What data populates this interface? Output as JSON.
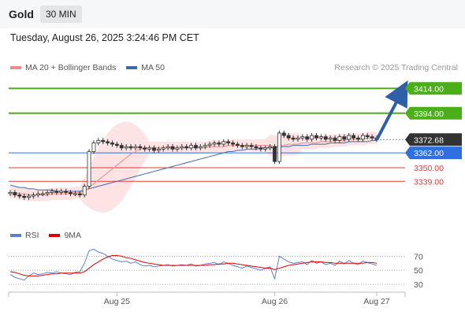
{
  "header": {
    "title": "Gold",
    "period": "30 MIN"
  },
  "datetime": "Tuesday, August 26, 2025 3:24:46 PM CET",
  "legend": {
    "main": [
      {
        "label": "MA 20 + Bollinger Bands",
        "color": "#f28b82"
      },
      {
        "label": "MA 50",
        "color": "#3f6aa8"
      }
    ],
    "indicator": [
      {
        "label": "RSI",
        "color": "#5b7fd6"
      },
      {
        "label": "9MA",
        "color": "#e00000"
      }
    ]
  },
  "credit": "Research © 2025 Trading Central",
  "chart_data": [
    {
      "type": "candlestick",
      "ylim": [
        3315,
        3425
      ],
      "x_ticks": [
        {
          "label": "Aug 25",
          "index": 23
        },
        {
          "label": "Aug 26",
          "index": 57
        },
        {
          "label": "Aug 27",
          "index": 79
        }
      ],
      "current_price": {
        "label": "3372.68",
        "value": 3372.68,
        "color": "#333333"
      },
      "levels": [
        {
          "label": "3414.00",
          "value": 3414.0,
          "kind": "resistance",
          "color": "#4caf1a"
        },
        {
          "label": "3394.00",
          "value": 3394.0,
          "kind": "resistance",
          "color": "#4caf1a"
        },
        {
          "label": "3362.00",
          "value": 3362.0,
          "kind": "pivot",
          "color": "#2f6fe0"
        },
        {
          "label": "3350.00",
          "value": 3350.0,
          "kind": "support",
          "color": "#e53935"
        },
        {
          "label": "3339.00",
          "value": 3339.0,
          "kind": "support",
          "color": "#e53935"
        }
      ],
      "arrow": {
        "from_index": 80,
        "from_value": 3372.5,
        "to_value": 3414,
        "color": "#2f5fa8"
      },
      "close": [
        3330,
        3328,
        3327,
        3326,
        3327,
        3328,
        3329,
        3329,
        3330,
        3331,
        3330,
        3331,
        3330,
        3329,
        3329,
        3328,
        3335,
        3363,
        3370,
        3372,
        3371,
        3370,
        3369,
        3368,
        3366,
        3367,
        3366,
        3367,
        3366,
        3365,
        3366,
        3364,
        3365,
        3366,
        3367,
        3365,
        3366,
        3367,
        3366,
        3368,
        3366,
        3367,
        3368,
        3369,
        3370,
        3369,
        3371,
        3370,
        3369,
        3368,
        3367,
        3368,
        3367,
        3366,
        3365,
        3366,
        3367,
        3355,
        3378,
        3376,
        3374,
        3373,
        3374,
        3375,
        3373,
        3376,
        3374,
        3375,
        3373,
        3374,
        3372,
        3375,
        3373,
        3376,
        3374,
        3373,
        3376,
        3375,
        3374,
        3372.68
      ],
      "ma20": [
        3330,
        3330,
        3329,
        3329,
        3328,
        3328,
        3328,
        3328,
        3328,
        3329,
        3329,
        3329,
        3329,
        3329,
        3330,
        3330,
        3331,
        3334,
        3337,
        3340,
        3343,
        3346,
        3349,
        3352,
        3355,
        3358,
        3361,
        3363,
        3365,
        3366,
        3366,
        3366,
        3366,
        3366,
        3366,
        3366,
        3366,
        3366,
        3366,
        3366,
        3366,
        3366,
        3366,
        3367,
        3367,
        3367,
        3367,
        3368,
        3368,
        3368,
        3368,
        3368,
        3368,
        3368,
        3368,
        3368,
        3368,
        3367,
        3368,
        3368,
        3369,
        3369,
        3369,
        3370,
        3370,
        3370,
        3370,
        3371,
        3371,
        3371,
        3372,
        3372,
        3372,
        3373,
        3373,
        3373,
        3373,
        3374,
        3374,
        3374
      ],
      "ma50": [
        3336,
        3335,
        3334,
        3334,
        3333,
        3333,
        3332,
        3332,
        3332,
        3332,
        3331,
        3331,
        3331,
        3331,
        3331,
        3331,
        3332,
        3333,
        3334,
        3335,
        3336,
        3337,
        3338,
        3339,
        3340,
        3341,
        3342,
        3343,
        3344,
        3345,
        3346,
        3347,
        3348,
        3349,
        3350,
        3351,
        3352,
        3353,
        3354,
        3355,
        3356,
        3357,
        3358,
        3359,
        3360,
        3361,
        3362,
        3363,
        3363,
        3364,
        3364,
        3365,
        3365,
        3365,
        3366,
        3366,
        3366,
        3366,
        3367,
        3367,
        3367,
        3368,
        3368,
        3368,
        3368,
        3369,
        3369,
        3369,
        3369,
        3370,
        3370,
        3370,
        3370,
        3371,
        3371,
        3371,
        3371,
        3371,
        3372,
        3372
      ]
    },
    {
      "type": "line",
      "ylim": [
        20,
        85
      ],
      "y_ticks": [
        70,
        50,
        30
      ],
      "series": [
        {
          "name": "RSI",
          "color": "#5b7fd6",
          "values": [
            44,
            40,
            38,
            36,
            42,
            46,
            44,
            45,
            47,
            46,
            48,
            46,
            45,
            44,
            47,
            48,
            60,
            78,
            80,
            76,
            74,
            70,
            66,
            64,
            62,
            63,
            60,
            62,
            58,
            56,
            57,
            55,
            56,
            57,
            58,
            56,
            57,
            58,
            57,
            59,
            56,
            57,
            59,
            60,
            61,
            58,
            62,
            60,
            57,
            55,
            53,
            56,
            54,
            52,
            50,
            53,
            55,
            38,
            70,
            66,
            62,
            60,
            61,
            62,
            58,
            64,
            60,
            62,
            58,
            60,
            57,
            63,
            59,
            64,
            60,
            58,
            63,
            61,
            59,
            57
          ]
        },
        {
          "name": "9MA",
          "color": "#e00000",
          "values": [
            48,
            47,
            45,
            43,
            42,
            42,
            42,
            43,
            44,
            45,
            45,
            46,
            46,
            46,
            46,
            46,
            48,
            53,
            58,
            62,
            66,
            69,
            71,
            71,
            70,
            68,
            67,
            65,
            63,
            61,
            60,
            59,
            58,
            57,
            57,
            57,
            57,
            57,
            57,
            57,
            57,
            57,
            57,
            58,
            58,
            59,
            59,
            60,
            60,
            59,
            58,
            57,
            56,
            55,
            54,
            53,
            53,
            51,
            53,
            55,
            57,
            58,
            59,
            60,
            61,
            62,
            62,
            62,
            61,
            61,
            60,
            60,
            60,
            60,
            60,
            60,
            60,
            61,
            61,
            60
          ]
        }
      ]
    }
  ]
}
